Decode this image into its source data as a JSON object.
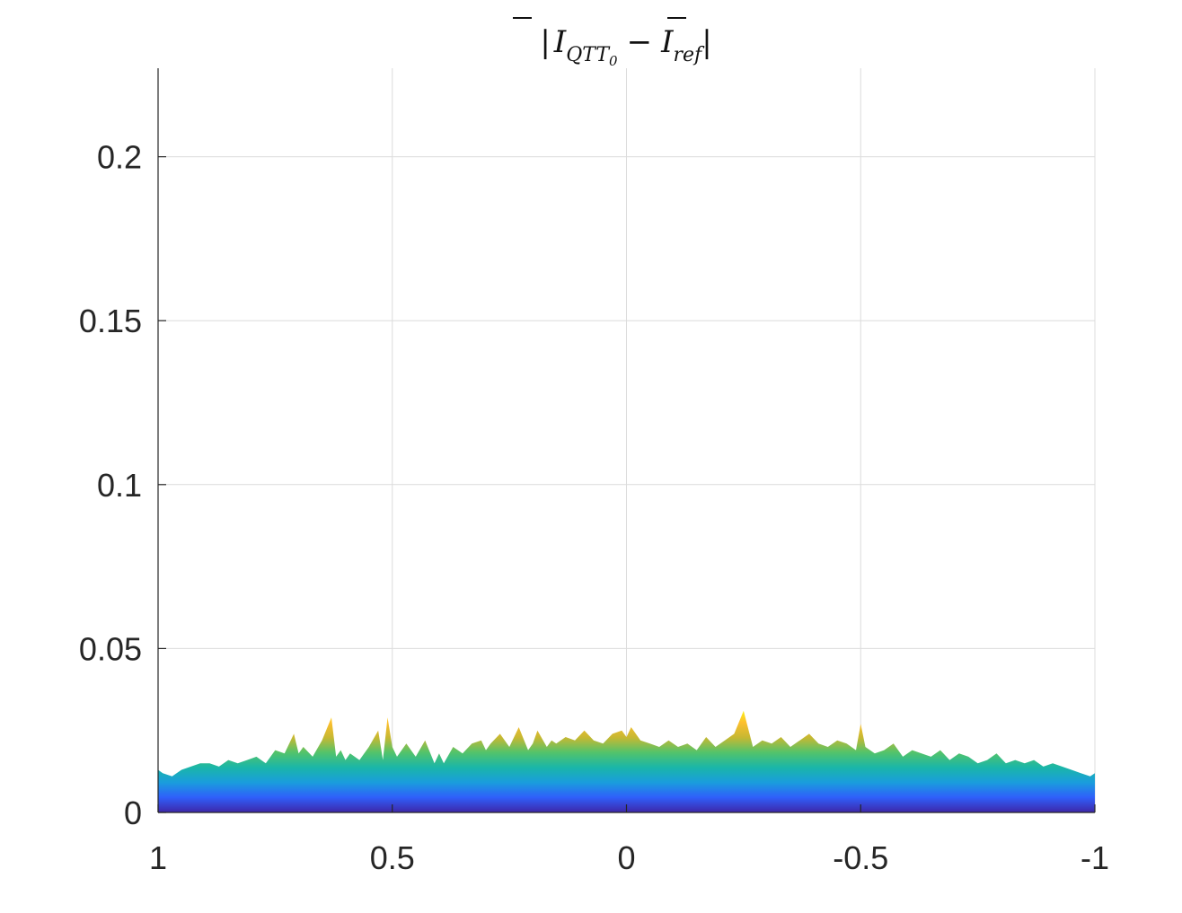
{
  "chart_data": {
    "type": "area",
    "title": "|Ī_QTT0 − Ī_ref|",
    "title_parts": {
      "open_bar": "|",
      "sym1": "I",
      "sub1": "QTT",
      "sub1b": "0",
      "minus": "−",
      "sym2": "I",
      "sub2": "ref",
      "close_bar": "|"
    },
    "xlabel": "",
    "ylabel": "",
    "xlim": [
      1,
      -1
    ],
    "ylim": [
      0,
      0.227
    ],
    "x_reversed": true,
    "grid": true,
    "xticks": [
      1,
      0.5,
      0,
      -0.5,
      -1
    ],
    "xtick_labels": [
      "1",
      "0.5",
      "0",
      "-0.5",
      "-1"
    ],
    "yticks": [
      0,
      0.05,
      0.1,
      0.15,
      0.2
    ],
    "ytick_labels": [
      "0",
      "0.05",
      "0.1",
      "0.15",
      "0.2"
    ],
    "colormap": [
      "#3e26a8",
      "#2f5ffa",
      "#1a9ddd",
      "#1ab6a8",
      "#52c36b",
      "#c6b832",
      "#fdbf2e",
      "#f9fb0e"
    ],
    "colorscale_max": 0.032,
    "x": [
      1.0,
      0.99,
      0.97,
      0.95,
      0.93,
      0.91,
      0.89,
      0.87,
      0.85,
      0.83,
      0.81,
      0.79,
      0.77,
      0.75,
      0.73,
      0.71,
      0.7,
      0.69,
      0.67,
      0.65,
      0.63,
      0.62,
      0.61,
      0.6,
      0.59,
      0.57,
      0.55,
      0.53,
      0.52,
      0.51,
      0.5,
      0.49,
      0.47,
      0.45,
      0.43,
      0.41,
      0.4,
      0.39,
      0.37,
      0.35,
      0.33,
      0.31,
      0.3,
      0.29,
      0.27,
      0.25,
      0.23,
      0.21,
      0.2,
      0.19,
      0.17,
      0.16,
      0.15,
      0.13,
      0.11,
      0.09,
      0.07,
      0.05,
      0.03,
      0.01,
      0.0,
      -0.01,
      -0.03,
      -0.05,
      -0.07,
      -0.09,
      -0.11,
      -0.13,
      -0.15,
      -0.17,
      -0.19,
      -0.21,
      -0.23,
      -0.25,
      -0.27,
      -0.29,
      -0.31,
      -0.33,
      -0.35,
      -0.37,
      -0.39,
      -0.41,
      -0.43,
      -0.45,
      -0.47,
      -0.49,
      -0.5,
      -0.51,
      -0.53,
      -0.55,
      -0.57,
      -0.59,
      -0.61,
      -0.63,
      -0.65,
      -0.67,
      -0.69,
      -0.71,
      -0.73,
      -0.75,
      -0.77,
      -0.79,
      -0.81,
      -0.83,
      -0.85,
      -0.87,
      -0.89,
      -0.91,
      -0.93,
      -0.95,
      -0.97,
      -0.99,
      -1.0
    ],
    "y": [
      0.013,
      0.012,
      0.011,
      0.013,
      0.014,
      0.015,
      0.015,
      0.014,
      0.016,
      0.015,
      0.016,
      0.017,
      0.015,
      0.019,
      0.018,
      0.024,
      0.018,
      0.02,
      0.017,
      0.022,
      0.029,
      0.017,
      0.019,
      0.016,
      0.018,
      0.016,
      0.02,
      0.025,
      0.016,
      0.029,
      0.02,
      0.017,
      0.021,
      0.017,
      0.022,
      0.015,
      0.018,
      0.015,
      0.02,
      0.018,
      0.021,
      0.022,
      0.019,
      0.021,
      0.024,
      0.02,
      0.026,
      0.019,
      0.021,
      0.025,
      0.02,
      0.022,
      0.021,
      0.023,
      0.022,
      0.025,
      0.022,
      0.021,
      0.024,
      0.025,
      0.023,
      0.026,
      0.022,
      0.021,
      0.02,
      0.022,
      0.02,
      0.021,
      0.019,
      0.023,
      0.02,
      0.022,
      0.024,
      0.031,
      0.02,
      0.022,
      0.021,
      0.023,
      0.02,
      0.022,
      0.024,
      0.021,
      0.02,
      0.022,
      0.021,
      0.019,
      0.027,
      0.02,
      0.018,
      0.019,
      0.021,
      0.017,
      0.019,
      0.018,
      0.017,
      0.019,
      0.016,
      0.018,
      0.017,
      0.015,
      0.016,
      0.018,
      0.015,
      0.016,
      0.015,
      0.016,
      0.014,
      0.015,
      0.014,
      0.013,
      0.012,
      0.011,
      0.012
    ]
  }
}
